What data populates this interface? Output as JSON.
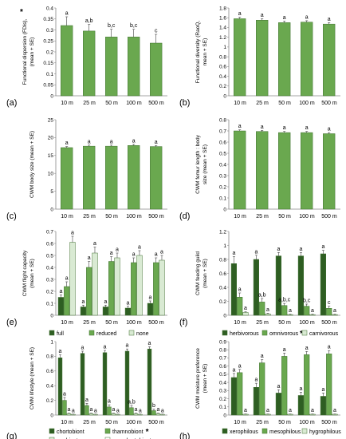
{
  "colors": {
    "dark_green": "#2e5e22",
    "mid_green": "#6aa84f",
    "pale_green": "#d9ead3",
    "bar_green": "#6aa84f",
    "edge": "#3f6f2f"
  },
  "chart_data": [
    {
      "panel_label": "(a)",
      "type": "bar",
      "ylabel": "Functional dispersion (FDis; mean + SE)",
      "ylabel_lines": [
        "Functional dispersion (FDis),",
        "(mean + SE)"
      ],
      "ylabel_star": "*",
      "ylim": [
        0,
        0.4
      ],
      "yticks": [
        "0",
        "0.05",
        "0.1",
        "0.15",
        "0.2",
        "0.25",
        "0.3",
        "0.35",
        "0.4"
      ],
      "categories": [
        "10 m",
        "25 m",
        "50 m",
        "100 m",
        "500 m"
      ],
      "series": [
        {
          "values": [
            0.32,
            0.295,
            0.268,
            0.268,
            0.24
          ],
          "errors": [
            0.04,
            0.03,
            0.035,
            0.035,
            0.04
          ],
          "letters": [
            "a",
            "a,b",
            "b,c",
            "b,c",
            "c"
          ]
        }
      ]
    },
    {
      "panel_label": "(b)",
      "type": "bar",
      "ylabel_lines": [
        "Functional diversity (RaoQ,",
        "mean + SE)"
      ],
      "ylim": [
        0,
        1.8
      ],
      "yticks": [
        "0",
        "0.2",
        "0.4",
        "0.6",
        "0.8",
        "1",
        "1.2",
        "1.4",
        "1.6",
        "1.8"
      ],
      "categories": [
        "10 m",
        "25 m",
        "50 m",
        "100 m",
        "500 m"
      ],
      "series": [
        {
          "values": [
            1.58,
            1.55,
            1.5,
            1.51,
            1.47
          ],
          "errors": [
            0.03,
            0.03,
            0.03,
            0.03,
            0.03
          ],
          "letters": [
            "a",
            "a",
            "a",
            "a",
            "a"
          ]
        }
      ]
    },
    {
      "panel_label": "(c)",
      "type": "bar",
      "ylabel_lines": [
        "CWM body size (mean + SE)"
      ],
      "ylim": [
        0,
        25
      ],
      "yticks": [
        "0",
        "5",
        "10",
        "15",
        "20",
        "25"
      ],
      "categories": [
        "10 m",
        "25 m",
        "50 m",
        "100 m",
        "500 m"
      ],
      "series": [
        {
          "values": [
            17.2,
            17.6,
            17.6,
            17.8,
            17.5
          ],
          "errors": [
            0.3,
            0.3,
            0.3,
            0.3,
            0.3
          ],
          "letters": [
            "a",
            "a",
            "a",
            "a",
            "a"
          ]
        }
      ]
    },
    {
      "panel_label": "(d)",
      "type": "bar",
      "ylabel_lines": [
        "CWM femur length : body",
        "size (mean + SE)"
      ],
      "ylim": [
        0,
        0.8
      ],
      "yticks": [
        "0",
        "0.1",
        "0.2",
        "0.3",
        "0.4",
        "0.5",
        "0.6",
        "0.7",
        "0.8"
      ],
      "categories": [
        "10 m",
        "25 m",
        "50 m",
        "100 m",
        "500 m"
      ],
      "series": [
        {
          "values": [
            0.7,
            0.695,
            0.685,
            0.685,
            0.675
          ],
          "errors": [
            0.01,
            0.01,
            0.01,
            0.01,
            0.01
          ],
          "letters": [
            "a",
            "a",
            "a",
            "a",
            "a"
          ]
        }
      ]
    },
    {
      "panel_label": "(e)",
      "type": "bar",
      "ylabel_lines": [
        "CWM flight capacity",
        "(mean + SE)"
      ],
      "ylim": [
        0,
        0.7
      ],
      "yticks": [
        "0",
        "0.1",
        "0.2",
        "0.3",
        "0.4",
        "0.5",
        "0.6",
        "0.7"
      ],
      "categories": [
        "10 m",
        "25 m",
        "50 m",
        "100 m",
        "500 m"
      ],
      "series": [
        {
          "name": "full",
          "color": "dark",
          "values": [
            0.15,
            0.07,
            0.07,
            0.06,
            0.1
          ],
          "errors": [
            0.02,
            0.015,
            0.015,
            0.015,
            0.02
          ],
          "letters": [
            "a",
            "a",
            "a",
            "a",
            "a"
          ]
        },
        {
          "name": "reduced",
          "color": "mid",
          "values": [
            0.24,
            0.4,
            0.45,
            0.44,
            0.44
          ],
          "errors": [
            0.04,
            0.05,
            0.04,
            0.04,
            0.04
          ],
          "letters": [
            "a",
            "a",
            "a",
            "a",
            "a"
          ]
        },
        {
          "name": "none",
          "color": "pale",
          "values": [
            0.61,
            0.52,
            0.48,
            0.5,
            0.46
          ],
          "errors": [
            0.05,
            0.05,
            0.04,
            0.04,
            0.04
          ],
          "letters": [
            "a",
            "a",
            "a",
            "a",
            "a"
          ]
        }
      ],
      "legend": [
        {
          "label": "full",
          "color": "dark"
        },
        {
          "label": "reduced",
          "color": "mid"
        },
        {
          "label": "none",
          "color": "pale"
        }
      ]
    },
    {
      "panel_label": "(f)",
      "type": "bar",
      "ylabel_lines": [
        "CWM feeding guild",
        "(mean + SE)"
      ],
      "ylim": [
        0,
        1.2
      ],
      "yticks": [
        "0",
        "0.2",
        "0.4",
        "0.6",
        "0.8",
        "1",
        "1.2"
      ],
      "categories": [
        "10 m",
        "25 m",
        "50 m",
        "100 m",
        "500 m"
      ],
      "series": [
        {
          "name": "herbivorous",
          "color": "dark",
          "values": [
            0.74,
            0.8,
            0.85,
            0.85,
            0.88
          ],
          "errors": [
            0.1,
            0.06,
            0.05,
            0.05,
            0.05
          ],
          "letters": [
            "a",
            "a",
            "a",
            "a",
            "a"
          ]
        },
        {
          "name": "omnivorous",
          "color": "mid",
          "values": [
            0.26,
            0.19,
            0.14,
            0.13,
            0.1
          ],
          "errors": [
            0.06,
            0.05,
            0.03,
            0.03,
            0.03
          ],
          "letters": [
            "a",
            "a,b",
            "a,b,c",
            "b,c",
            "c"
          ]
        },
        {
          "name": "carnivorous",
          "color": "pale",
          "values": [
            0.04,
            0.02,
            0.01,
            0.01,
            0.01
          ],
          "errors": [
            0.01,
            0.01,
            0.005,
            0.005,
            0.005
          ],
          "letters": [
            "a",
            "a",
            "a",
            "a",
            "a"
          ]
        }
      ],
      "legend": [
        {
          "label": "herbivorous",
          "color": "dark"
        },
        {
          "label": "omnivorous",
          "color": "mid",
          "star": "*"
        },
        {
          "label": "carnivorous",
          "color": "pale"
        }
      ]
    },
    {
      "panel_label": "(g)",
      "type": "bar",
      "ylabel_lines": [
        "CWM lifestyle (mean + SE)"
      ],
      "ylim": [
        0,
        1
      ],
      "yticks": [
        "0",
        "0.2",
        "0.4",
        "0.6",
        "0.8",
        "1"
      ],
      "categories": [
        "10 m",
        "25 m",
        "50 m",
        "100 m",
        "500 m"
      ],
      "series": [
        {
          "name": "chortobiont",
          "color": "dark",
          "values": [
            0.78,
            0.84,
            0.85,
            0.87,
            0.9
          ],
          "errors": [
            0.04,
            0.03,
            0.03,
            0.03,
            0.03
          ],
          "letters": [
            "a",
            "a",
            "a",
            "a",
            "a"
          ]
        },
        {
          "name": "thamnobiont",
          "color": "mid",
          "values": [
            0.2,
            0.13,
            0.11,
            0.1,
            0.06
          ],
          "errors": [
            0.04,
            0.03,
            0.03,
            0.03,
            0.02
          ],
          "letters": [
            "a",
            "a",
            "a",
            "a,b",
            "b"
          ]
        },
        {
          "name": "geobiont",
          "color": "pale",
          "values": [
            0.02,
            0.02,
            0.02,
            0.02,
            0.02
          ],
          "errors": [
            0.005,
            0.005,
            0.005,
            0.005,
            0.005
          ],
          "letters": [
            "a",
            "a",
            "a",
            "a",
            "a"
          ]
        },
        {
          "name": "geo-chortobiont",
          "color": "white",
          "values": [
            0.01,
            0.01,
            0.01,
            0.01,
            0.01
          ],
          "errors": [
            0.003,
            0.003,
            0.003,
            0.003,
            0.003
          ],
          "letters": [
            "a",
            "a",
            "a",
            "a",
            "a"
          ]
        }
      ],
      "legend": [
        {
          "label": "chortobiont",
          "color": "dark"
        },
        {
          "label": "thamnobiont",
          "color": "mid",
          "star": "*"
        },
        {
          "label": "geobiont",
          "color": "pale"
        },
        {
          "label": "geo-chortobiont",
          "color": "white"
        }
      ]
    },
    {
      "panel_label": "(h)",
      "type": "bar",
      "ylabel_lines": [
        "CWM moisture preference",
        "(mean + SE)"
      ],
      "ylim": [
        0,
        0.9
      ],
      "yticks": [
        "0",
        "0.1",
        "0.2",
        "0.3",
        "0.4",
        "0.5",
        "0.6",
        "0.7",
        "0.8",
        "0.9"
      ],
      "categories": [
        "10 m",
        "25 m",
        "50 m",
        "100 m",
        "500 m"
      ],
      "series": [
        {
          "name": "xerophilous",
          "color": "dark",
          "values": [
            0.46,
            0.34,
            0.27,
            0.24,
            0.23
          ],
          "errors": [
            0.05,
            0.05,
            0.04,
            0.04,
            0.04
          ],
          "letters": [
            "a",
            "a",
            "a",
            "a",
            "a"
          ]
        },
        {
          "name": "mesophilous",
          "color": "mid",
          "values": [
            0.52,
            0.64,
            0.72,
            0.74,
            0.75
          ],
          "errors": [
            0.04,
            0.04,
            0.04,
            0.04,
            0.04
          ],
          "letters": [
            "a",
            "a",
            "a",
            "a",
            "a"
          ]
        },
        {
          "name": "hygrophilous",
          "color": "pale",
          "values": [
            0.01,
            0.01,
            0.01,
            0.01,
            0.01
          ],
          "errors": [
            0.003,
            0.003,
            0.003,
            0.003,
            0.003
          ],
          "letters": [
            "a",
            "a",
            "a",
            "a",
            "a"
          ]
        }
      ],
      "legend": [
        {
          "label": "xerophilous",
          "color": "dark"
        },
        {
          "label": "mesophilous",
          "color": "mid"
        },
        {
          "label": "hygrophilous",
          "color": "pale"
        }
      ]
    }
  ]
}
